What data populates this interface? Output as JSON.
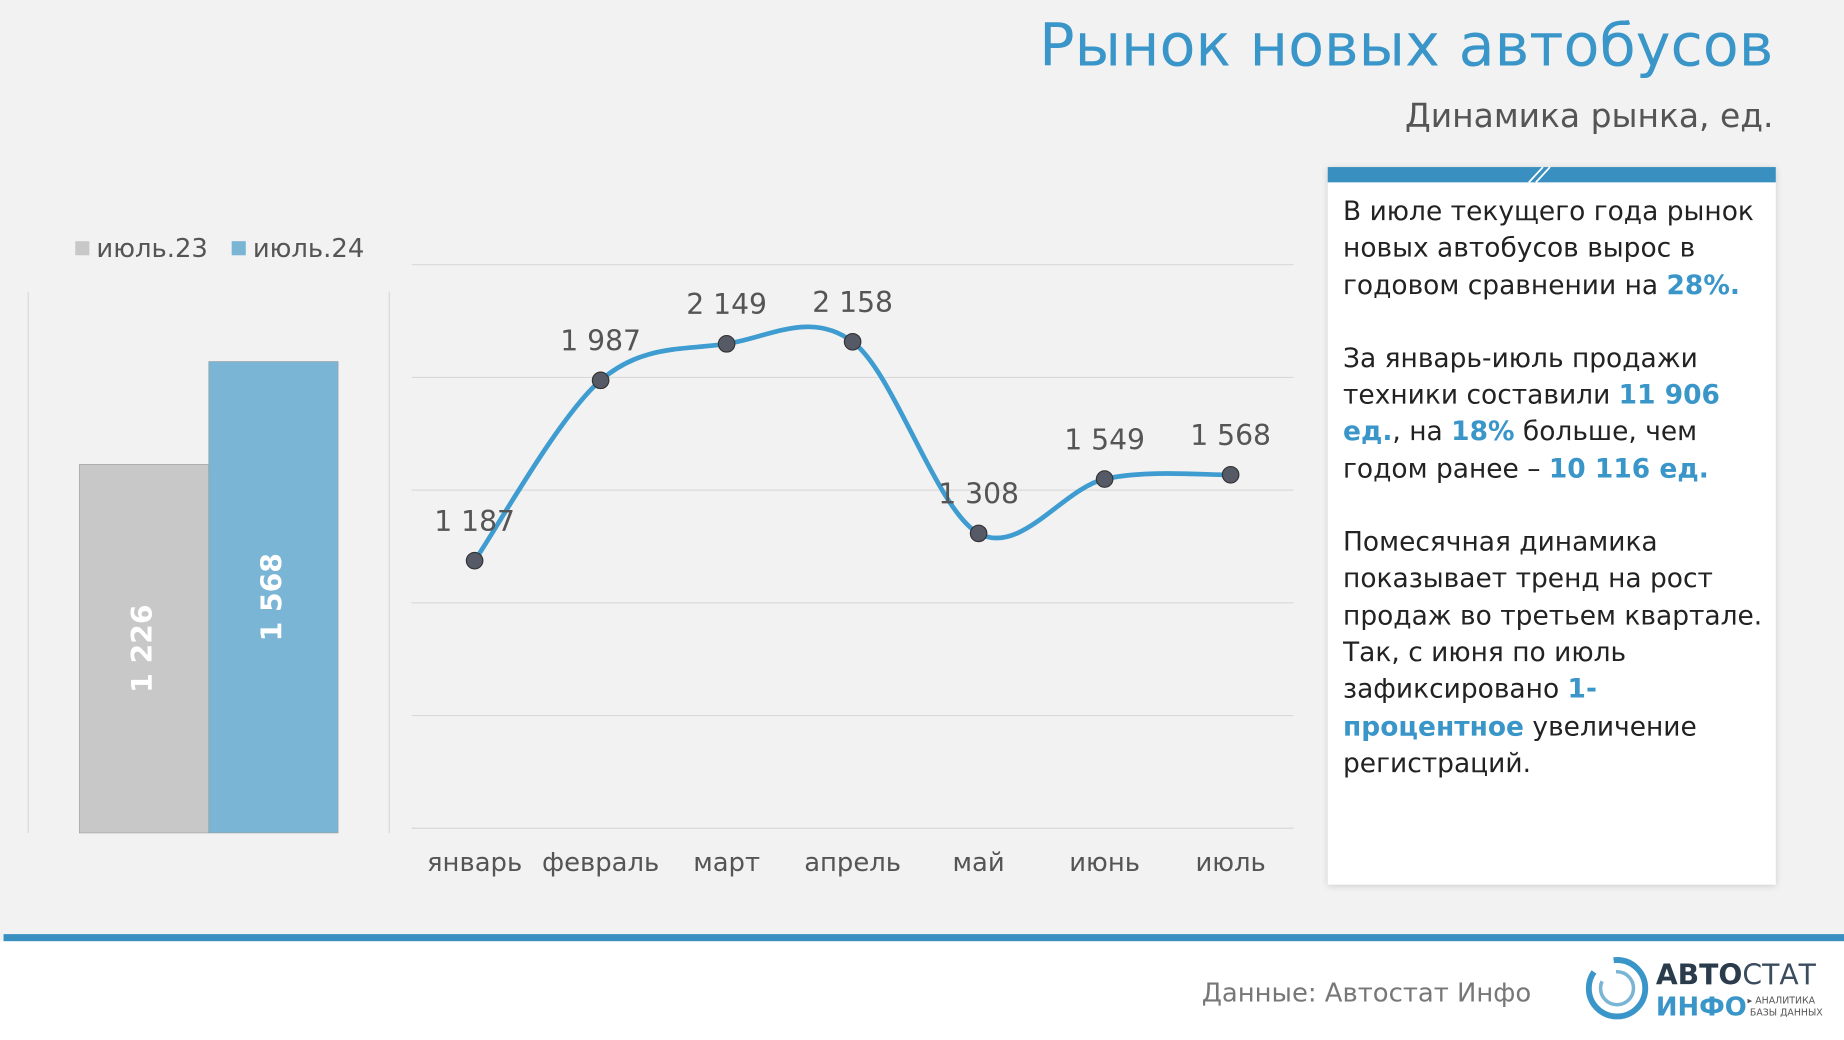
{
  "title": "Рынок новых автобусов",
  "subtitle": "Динамика рынка, ед.",
  "chart_data": [
    {
      "type": "bar",
      "categories": [
        null
      ],
      "legend": "top-left",
      "ylim": [
        0,
        1800
      ],
      "series": [
        {
          "name": "июль.23",
          "color": "#c8c8c8",
          "values": [
            1226
          ],
          "value_labels": [
            "1 226"
          ]
        },
        {
          "name": "июль.24",
          "color": "#7ab5d5",
          "values": [
            1568
          ],
          "value_labels": [
            "1 568"
          ]
        }
      ]
    },
    {
      "type": "line",
      "categories": [
        "январь",
        "февраль",
        "март",
        "апрель",
        "май",
        "июнь",
        "июль"
      ],
      "values": [
        1187,
        1987,
        2149,
        2158,
        1308,
        1549,
        1568
      ],
      "value_labels": [
        "1 187",
        "1 987",
        "2 149",
        "2 158",
        "1 308",
        "1 549",
        "1 568"
      ],
      "color": "#3e9cd0",
      "marker_color": "#555a66",
      "smooth": true,
      "grid": true,
      "ylim": [
        0,
        2500
      ],
      "yticks": [
        0,
        500,
        1000,
        1500,
        2000,
        2500
      ]
    }
  ],
  "note": {
    "paragraphs": [
      [
        {
          "text": "В июле текущего года рынок новых автобусов вырос в годовом сравнении на ",
          "highlight": false
        },
        {
          "text": "28%.",
          "highlight": true
        }
      ],
      [
        {
          "text": "За январь-июль продажи техники составили ",
          "highlight": false
        },
        {
          "text": "11 906 ед.",
          "highlight": true
        },
        {
          "text": ", на ",
          "highlight": false
        },
        {
          "text": "18%",
          "highlight": true
        },
        {
          "text": " больше, чем годом ранее – ",
          "highlight": false
        },
        {
          "text": "10 116 ед.",
          "highlight": true
        }
      ],
      [
        {
          "text": "Помесячная динамика показывает тренд на рост продаж во третьем квартале. Так, с июня по июль зафиксировано ",
          "highlight": false
        },
        {
          "text": "1-процентное",
          "highlight": true
        },
        {
          "text": " увеличение регистраций.",
          "highlight": false
        }
      ]
    ]
  },
  "footer": {
    "source": "Данные: Автостат Инфо",
    "logo_top_a": "АВТО",
    "logo_top_b": "СТАТ",
    "logo_bottom": "ИНФО",
    "logo_tag_1": "▸ АНАЛИТИКА",
    "logo_tag_2": "БАЗЫ ДАННЫХ"
  }
}
